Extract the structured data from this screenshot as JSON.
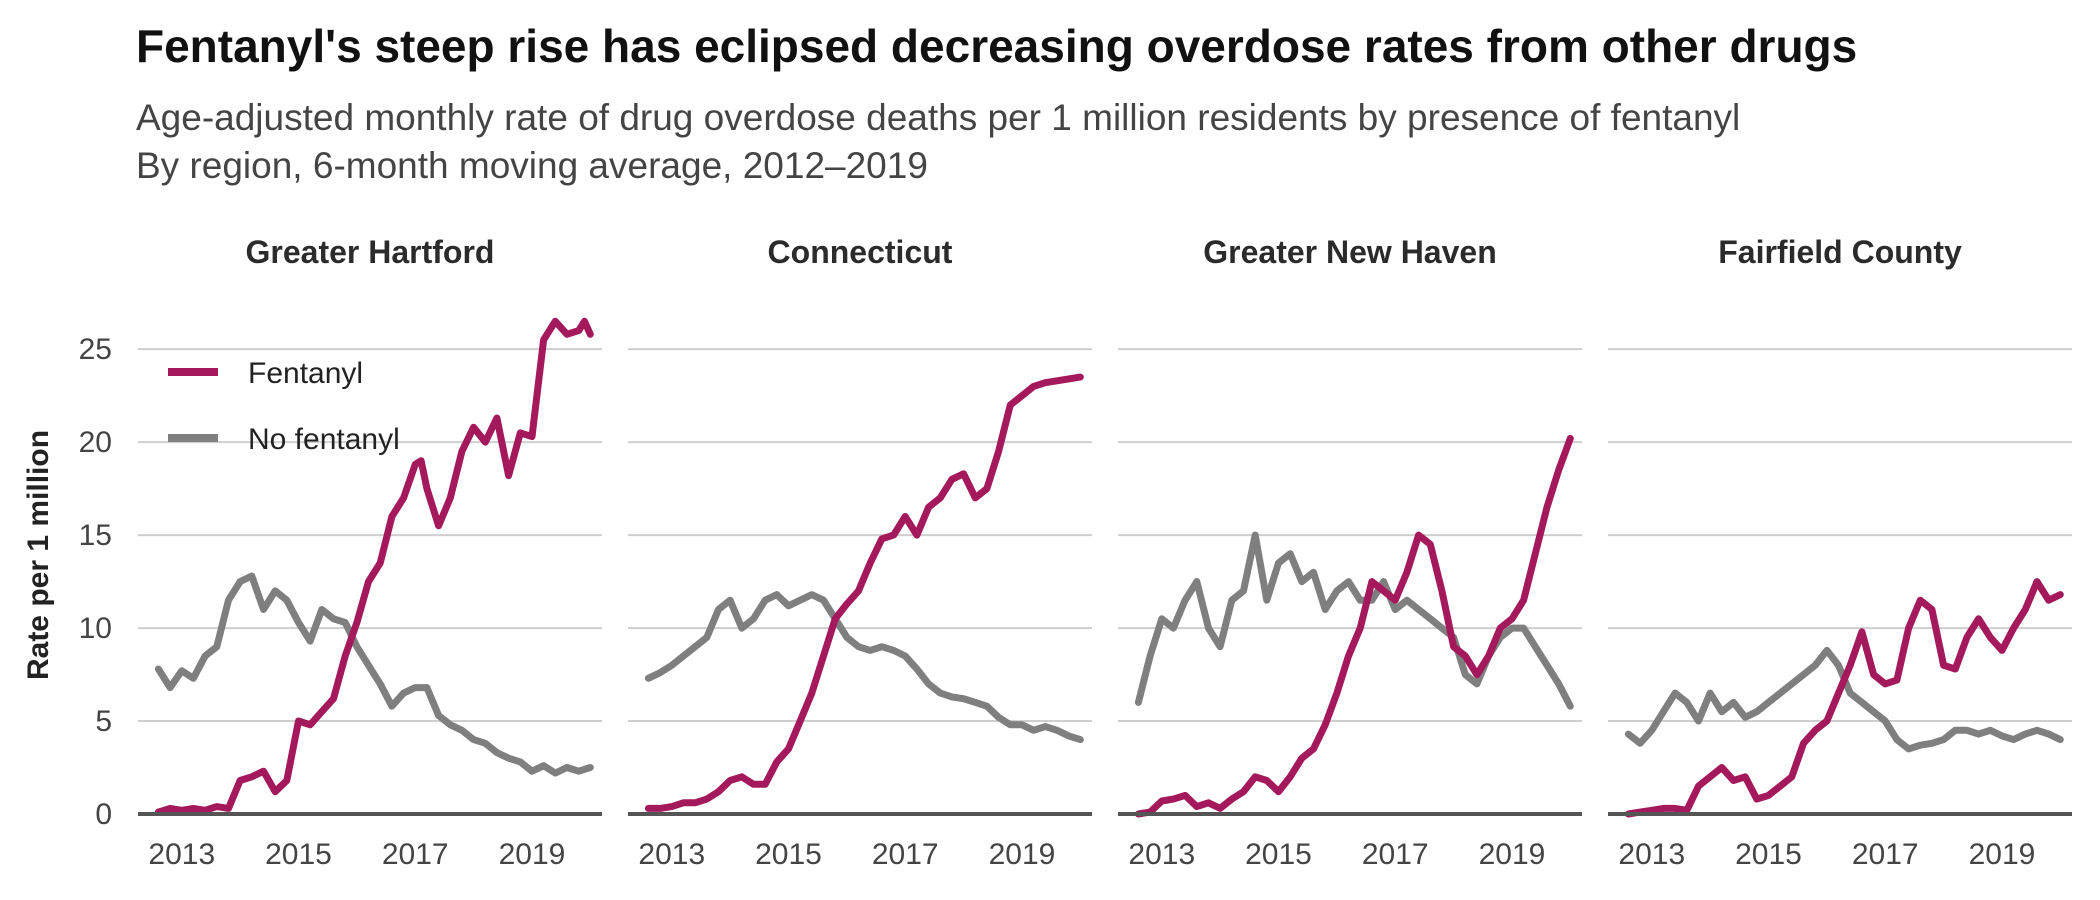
{
  "title": "Fentanyl's steep rise has eclipsed decreasing overdose rates from other drugs",
  "subtitle_lines": [
    "Age-adjusted monthly rate of drug overdose deaths per 1 million residents by presence of fentanyl",
    "By region, 6-month moving average, 2012–2019"
  ],
  "chart_data": {
    "type": "line",
    "ylabel": "Rate per 1 million",
    "ylim": [
      0,
      27
    ],
    "xlim": [
      2012.25,
      2020.2
    ],
    "y_ticks": [
      0,
      5,
      10,
      15,
      20,
      25
    ],
    "x_ticks": [
      2013,
      2015,
      2017,
      2019
    ],
    "grid": "horizontal",
    "legend": {
      "placement": "top-left of first panel",
      "entries": [
        {
          "name": "Fentanyl",
          "color": "#a3195b"
        },
        {
          "name": "No fentanyl",
          "color": "#7f7f7f"
        }
      ]
    },
    "colors": {
      "fentanyl": "#a3195b",
      "no_fentanyl": "#7f7f7f"
    },
    "panels": [
      {
        "name": "Greater Hartford",
        "series": [
          {
            "name": "Fentanyl",
            "x": [
              2012.6,
              2012.8,
              2013.0,
              2013.2,
              2013.4,
              2013.6,
              2013.8,
              2014.0,
              2014.2,
              2014.4,
              2014.6,
              2014.8,
              2015.0,
              2015.2,
              2015.4,
              2015.6,
              2015.8,
              2016.0,
              2016.2,
              2016.4,
              2016.6,
              2016.8,
              2017.0,
              2017.1,
              2017.2,
              2017.4,
              2017.6,
              2017.8,
              2018.0,
              2018.2,
              2018.4,
              2018.6,
              2018.8,
              2019.0,
              2019.2,
              2019.4,
              2019.6,
              2019.8,
              2019.9,
              2020.0
            ],
            "values": [
              0.1,
              0.3,
              0.2,
              0.3,
              0.2,
              0.4,
              0.3,
              1.8,
              2.0,
              2.3,
              1.2,
              1.8,
              5.0,
              4.8,
              5.5,
              6.2,
              8.5,
              10.3,
              12.5,
              13.5,
              16.0,
              17.0,
              18.8,
              19.0,
              17.5,
              15.5,
              17.0,
              19.5,
              20.8,
              20.0,
              21.3,
              18.2,
              20.5,
              20.3,
              25.5,
              26.5,
              25.8,
              26.0,
              26.5,
              25.8
            ]
          },
          {
            "name": "No fentanyl",
            "x": [
              2012.6,
              2012.8,
              2013.0,
              2013.2,
              2013.4,
              2013.6,
              2013.8,
              2014.0,
              2014.2,
              2014.4,
              2014.6,
              2014.8,
              2015.0,
              2015.2,
              2015.4,
              2015.6,
              2015.8,
              2016.0,
              2016.2,
              2016.4,
              2016.6,
              2016.8,
              2017.0,
              2017.2,
              2017.4,
              2017.6,
              2017.8,
              2018.0,
              2018.2,
              2018.4,
              2018.6,
              2018.8,
              2019.0,
              2019.2,
              2019.4,
              2019.6,
              2019.8,
              2020.0
            ],
            "values": [
              7.8,
              6.8,
              7.7,
              7.3,
              8.5,
              9.0,
              11.5,
              12.5,
              12.8,
              11.0,
              12.0,
              11.5,
              10.3,
              9.3,
              11.0,
              10.5,
              10.3,
              9.0,
              8.0,
              7.0,
              5.8,
              6.5,
              6.8,
              6.8,
              5.3,
              4.8,
              4.5,
              4.0,
              3.8,
              3.3,
              3.0,
              2.8,
              2.3,
              2.6,
              2.2,
              2.5,
              2.3,
              2.5
            ]
          }
        ]
      },
      {
        "name": "Connecticut",
        "series": [
          {
            "name": "Fentanyl",
            "x": [
              2012.6,
              2012.8,
              2013.0,
              2013.2,
              2013.4,
              2013.6,
              2013.8,
              2014.0,
              2014.2,
              2014.4,
              2014.6,
              2014.8,
              2015.0,
              2015.2,
              2015.4,
              2015.6,
              2015.8,
              2016.0,
              2016.2,
              2016.4,
              2016.6,
              2016.8,
              2017.0,
              2017.2,
              2017.4,
              2017.6,
              2017.8,
              2018.0,
              2018.2,
              2018.4,
              2018.6,
              2018.8,
              2019.0,
              2019.2,
              2019.4,
              2019.6,
              2019.8,
              2020.0
            ],
            "values": [
              0.3,
              0.3,
              0.4,
              0.6,
              0.6,
              0.8,
              1.2,
              1.8,
              2.0,
              1.6,
              1.6,
              2.8,
              3.5,
              5.0,
              6.5,
              8.5,
              10.5,
              11.3,
              12.0,
              13.5,
              14.8,
              15.0,
              16.0,
              15.0,
              16.5,
              17.0,
              18.0,
              18.3,
              17.0,
              17.5,
              19.5,
              22.0,
              22.5,
              23.0,
              23.2,
              23.3,
              23.4,
              23.5
            ]
          },
          {
            "name": "No fentanyl",
            "x": [
              2012.6,
              2012.8,
              2013.0,
              2013.2,
              2013.4,
              2013.6,
              2013.8,
              2014.0,
              2014.2,
              2014.4,
              2014.6,
              2014.8,
              2015.0,
              2015.2,
              2015.4,
              2015.6,
              2015.8,
              2016.0,
              2016.2,
              2016.4,
              2016.6,
              2016.8,
              2017.0,
              2017.2,
              2017.4,
              2017.6,
              2017.8,
              2018.0,
              2018.2,
              2018.4,
              2018.6,
              2018.8,
              2019.0,
              2019.2,
              2019.4,
              2019.6,
              2019.8,
              2020.0
            ],
            "values": [
              7.3,
              7.6,
              8.0,
              8.5,
              9.0,
              9.5,
              11.0,
              11.5,
              10.0,
              10.5,
              11.5,
              11.8,
              11.2,
              11.5,
              11.8,
              11.5,
              10.5,
              9.5,
              9.0,
              8.8,
              9.0,
              8.8,
              8.5,
              7.8,
              7.0,
              6.5,
              6.3,
              6.2,
              6.0,
              5.8,
              5.2,
              4.8,
              4.8,
              4.5,
              4.7,
              4.5,
              4.2,
              4.0
            ]
          }
        ]
      },
      {
        "name": "Greater New Haven",
        "series": [
          {
            "name": "Fentanyl",
            "x": [
              2012.6,
              2012.8,
              2013.0,
              2013.2,
              2013.4,
              2013.6,
              2013.8,
              2014.0,
              2014.2,
              2014.4,
              2014.6,
              2014.8,
              2015.0,
              2015.2,
              2015.4,
              2015.6,
              2015.8,
              2016.0,
              2016.2,
              2016.4,
              2016.6,
              2016.8,
              2017.0,
              2017.2,
              2017.4,
              2017.6,
              2017.8,
              2018.0,
              2018.2,
              2018.4,
              2018.6,
              2018.8,
              2019.0,
              2019.2,
              2019.4,
              2019.6,
              2019.8,
              2020.0
            ],
            "values": [
              0.0,
              0.1,
              0.7,
              0.8,
              1.0,
              0.4,
              0.6,
              0.3,
              0.8,
              1.2,
              2.0,
              1.8,
              1.2,
              2.0,
              3.0,
              3.5,
              4.8,
              6.5,
              8.5,
              10.0,
              12.5,
              12.0,
              11.5,
              13.0,
              15.0,
              14.5,
              12.0,
              9.0,
              8.5,
              7.5,
              8.5,
              10.0,
              10.5,
              11.5,
              14.0,
              16.5,
              18.5,
              20.2
            ]
          },
          {
            "name": "No fentanyl",
            "x": [
              2012.6,
              2012.8,
              2013.0,
              2013.2,
              2013.4,
              2013.6,
              2013.8,
              2014.0,
              2014.2,
              2014.4,
              2014.6,
              2014.8,
              2015.0,
              2015.2,
              2015.4,
              2015.6,
              2015.8,
              2016.0,
              2016.2,
              2016.4,
              2016.6,
              2016.8,
              2017.0,
              2017.2,
              2017.4,
              2017.6,
              2017.8,
              2018.0,
              2018.2,
              2018.4,
              2018.6,
              2018.8,
              2019.0,
              2019.2,
              2019.4,
              2019.6,
              2019.8,
              2020.0
            ],
            "values": [
              6.0,
              8.5,
              10.5,
              10.0,
              11.5,
              12.5,
              10.0,
              9.0,
              11.5,
              12.0,
              15.0,
              11.5,
              13.5,
              14.0,
              12.5,
              13.0,
              11.0,
              12.0,
              12.5,
              11.5,
              11.5,
              12.5,
              11.0,
              11.5,
              11.0,
              10.5,
              10.0,
              9.5,
              7.5,
              7.0,
              8.5,
              9.5,
              10.0,
              10.0,
              9.0,
              8.0,
              7.0,
              5.8
            ]
          }
        ]
      },
      {
        "name": "Fairfield County",
        "series": [
          {
            "name": "Fentanyl",
            "x": [
              2012.6,
              2012.8,
              2013.0,
              2013.2,
              2013.4,
              2013.6,
              2013.8,
              2014.0,
              2014.2,
              2014.4,
              2014.6,
              2014.8,
              2015.0,
              2015.2,
              2015.4,
              2015.6,
              2015.8,
              2016.0,
              2016.2,
              2016.4,
              2016.6,
              2016.8,
              2017.0,
              2017.2,
              2017.4,
              2017.6,
              2017.8,
              2018.0,
              2018.2,
              2018.4,
              2018.6,
              2018.8,
              2019.0,
              2019.2,
              2019.4,
              2019.6,
              2019.8,
              2020.0
            ],
            "values": [
              0.0,
              0.1,
              0.2,
              0.3,
              0.3,
              0.2,
              1.5,
              2.0,
              2.5,
              1.8,
              2.0,
              0.8,
              1.0,
              1.5,
              2.0,
              3.8,
              4.5,
              5.0,
              6.5,
              8.0,
              9.8,
              7.5,
              7.0,
              7.2,
              10.0,
              11.5,
              11.0,
              8.0,
              7.8,
              9.5,
              10.5,
              9.5,
              8.8,
              10.0,
              11.0,
              12.5,
              11.5,
              11.8
            ]
          },
          {
            "name": "No fentanyl",
            "x": [
              2012.6,
              2012.8,
              2013.0,
              2013.2,
              2013.4,
              2013.6,
              2013.8,
              2014.0,
              2014.2,
              2014.4,
              2014.6,
              2014.8,
              2015.0,
              2015.2,
              2015.4,
              2015.6,
              2015.8,
              2016.0,
              2016.2,
              2016.4,
              2016.6,
              2016.8,
              2017.0,
              2017.2,
              2017.4,
              2017.6,
              2017.8,
              2018.0,
              2018.2,
              2018.4,
              2018.6,
              2018.8,
              2019.0,
              2019.2,
              2019.4,
              2019.6,
              2019.8,
              2020.0
            ],
            "values": [
              4.3,
              3.8,
              4.5,
              5.5,
              6.5,
              6.0,
              5.0,
              6.5,
              5.5,
              6.0,
              5.2,
              5.5,
              6.0,
              6.5,
              7.0,
              7.5,
              8.0,
              8.8,
              8.0,
              6.5,
              6.0,
              5.5,
              5.0,
              4.0,
              3.5,
              3.7,
              3.8,
              4.0,
              4.5,
              4.5,
              4.3,
              4.5,
              4.2,
              4.0,
              4.3,
              4.5,
              4.3,
              4.0
            ]
          }
        ]
      }
    ]
  }
}
